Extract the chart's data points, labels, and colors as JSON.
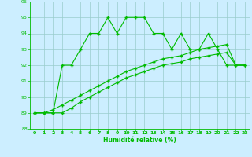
{
  "line1": [
    89,
    89,
    89,
    92,
    92,
    93,
    94,
    94,
    95,
    94,
    95,
    95,
    95,
    94,
    94,
    93,
    94,
    93,
    93,
    94,
    93,
    92,
    92,
    92
  ],
  "line2": [
    89,
    89,
    89,
    89,
    89.3,
    89.7,
    90.0,
    90.3,
    90.6,
    90.9,
    91.2,
    91.4,
    91.6,
    91.8,
    92.0,
    92.1,
    92.2,
    92.4,
    92.5,
    92.6,
    92.7,
    92.8,
    92.0,
    92.0
  ],
  "line3": [
    89,
    89,
    89.2,
    89.5,
    89.8,
    90.1,
    90.4,
    90.7,
    91.0,
    91.3,
    91.6,
    91.8,
    92.0,
    92.2,
    92.4,
    92.5,
    92.6,
    92.8,
    93.0,
    93.1,
    93.2,
    93.3,
    92.0,
    92.0
  ],
  "line_color": "#00bb00",
  "bg_color": "#cceeff",
  "grid_color": "#99cccc",
  "xlabel": "Humidité relative (%)",
  "ylim": [
    88,
    96
  ],
  "xlim": [
    -0.5,
    23.5
  ],
  "yticks": [
    88,
    89,
    90,
    91,
    92,
    93,
    94,
    95,
    96
  ],
  "xticks": [
    0,
    1,
    2,
    3,
    4,
    5,
    6,
    7,
    8,
    9,
    10,
    11,
    12,
    13,
    14,
    15,
    16,
    17,
    18,
    19,
    20,
    21,
    22,
    23
  ]
}
